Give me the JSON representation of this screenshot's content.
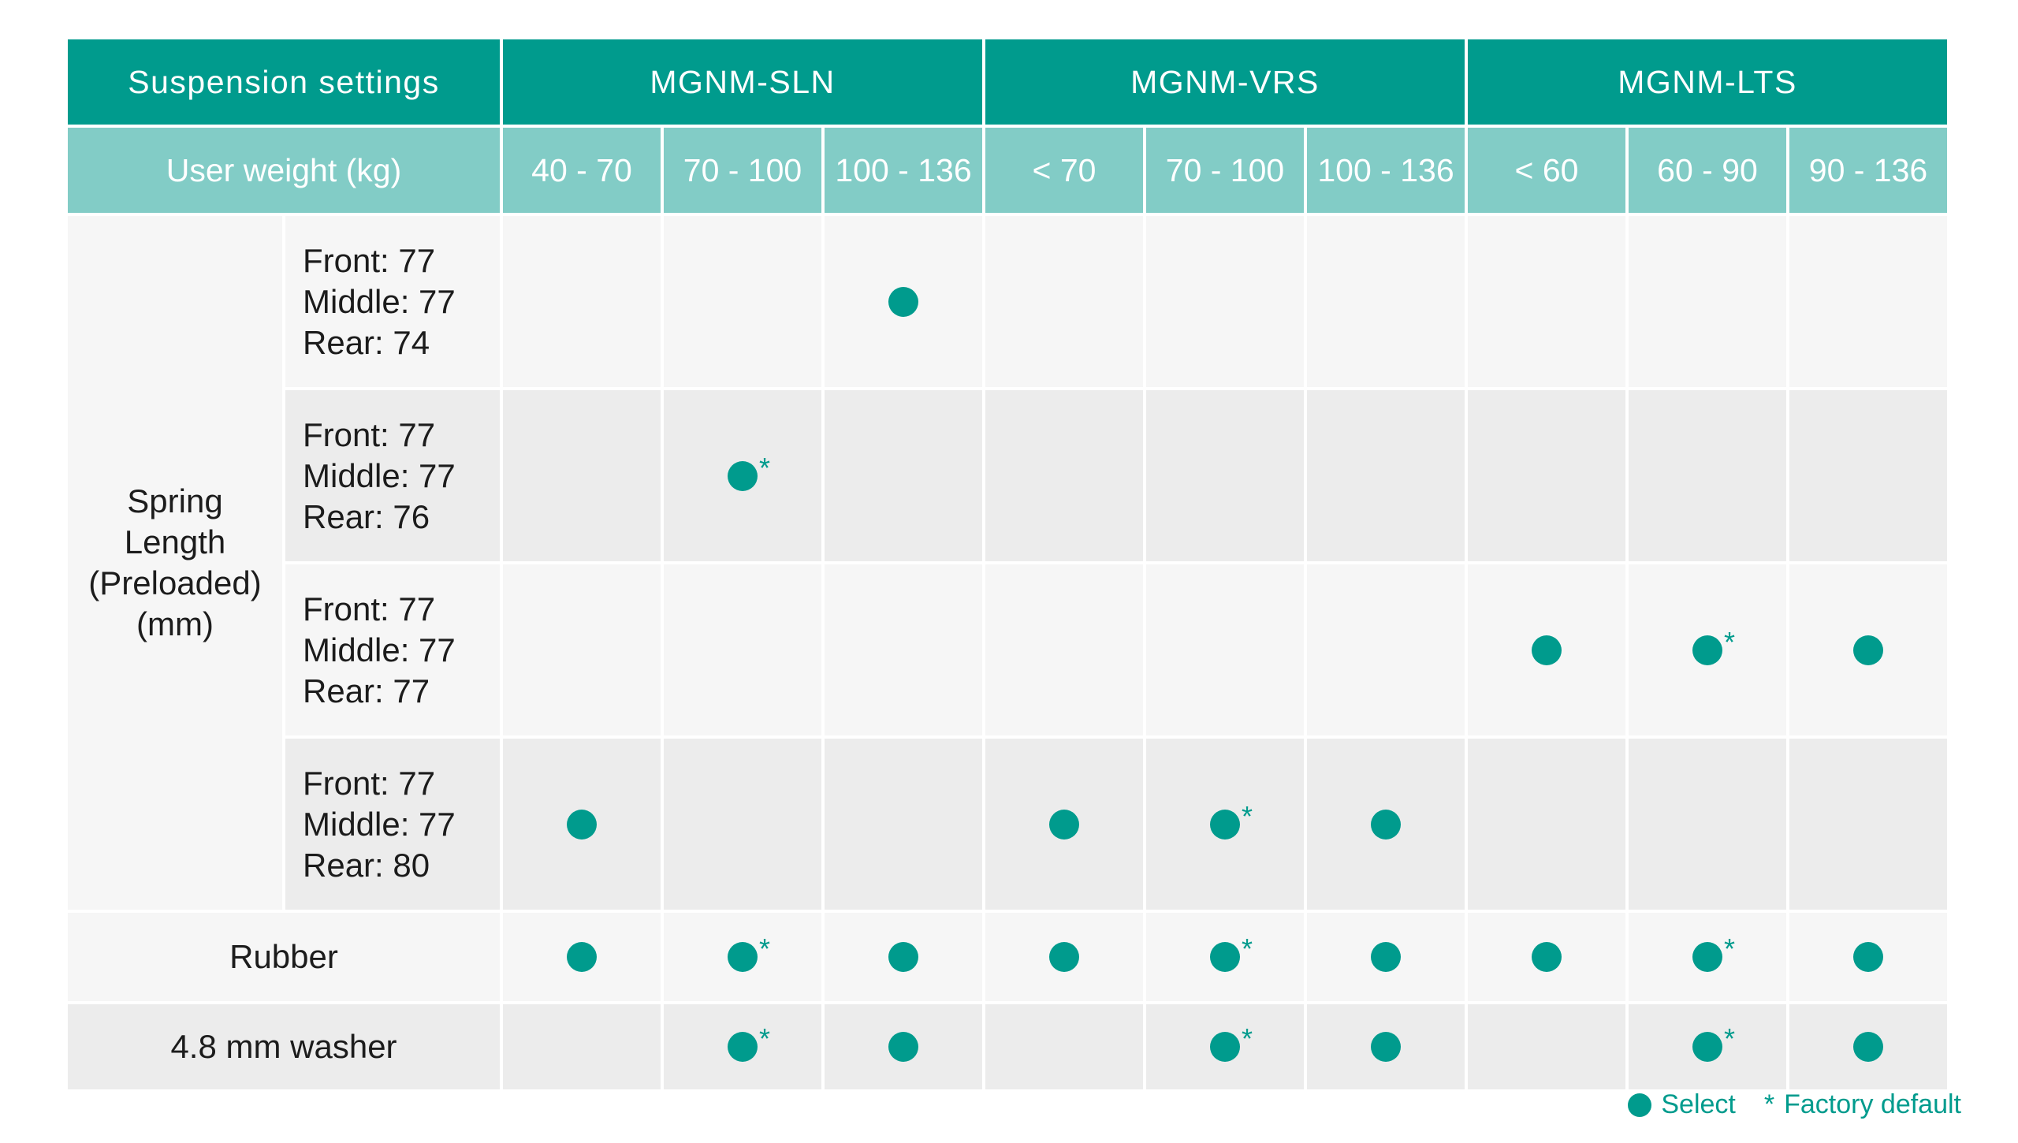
{
  "table": {
    "settings_label": "Suspension settings",
    "weight_label": "User weight (kg)",
    "models": [
      "MGNM-SLN",
      "MGNM-VRS",
      "MGNM-LTS"
    ],
    "weight_ranges": [
      "40 - 70",
      "70 - 100",
      "100 - 136",
      "< 70",
      "70 - 100",
      "100 - 136",
      "< 60",
      "60 - 90",
      "90 - 136"
    ],
    "spring_group_label": "Spring Length (Preloaded) (mm)",
    "rows": [
      {
        "label_lines": [
          "Front: 77",
          "Middle: 77",
          "Rear: 74"
        ],
        "marks": [
          "",
          "",
          "select",
          "",
          "",
          "",
          "",
          "",
          ""
        ]
      },
      {
        "label_lines": [
          "Front: 77",
          "Middle: 77",
          "Rear: 76"
        ],
        "marks": [
          "",
          "default",
          "",
          "",
          "",
          "",
          "",
          "",
          ""
        ]
      },
      {
        "label_lines": [
          "Front: 77",
          "Middle: 77",
          "Rear: 77"
        ],
        "marks": [
          "",
          "",
          "",
          "",
          "",
          "",
          "select",
          "default",
          "select"
        ]
      },
      {
        "label_lines": [
          "Front: 77",
          "Middle: 77",
          "Rear: 80"
        ],
        "marks": [
          "select",
          "",
          "",
          "select",
          "default",
          "select",
          "",
          "",
          ""
        ]
      },
      {
        "label": "Rubber",
        "marks": [
          "select",
          "default",
          "select",
          "select",
          "default",
          "select",
          "select",
          "default",
          "select"
        ]
      },
      {
        "label": "4.8 mm washer",
        "marks": [
          "",
          "default",
          "select",
          "",
          "default",
          "select",
          "",
          "default",
          "select"
        ]
      }
    ]
  },
  "legend": {
    "select_label": "Select",
    "default_symbol": "*",
    "default_label": "Factory default"
  },
  "colors": {
    "teal": "#009b8d",
    "light_teal": "#82ccc6",
    "row_light": "#f6f6f6",
    "row_dark": "#ececec"
  }
}
